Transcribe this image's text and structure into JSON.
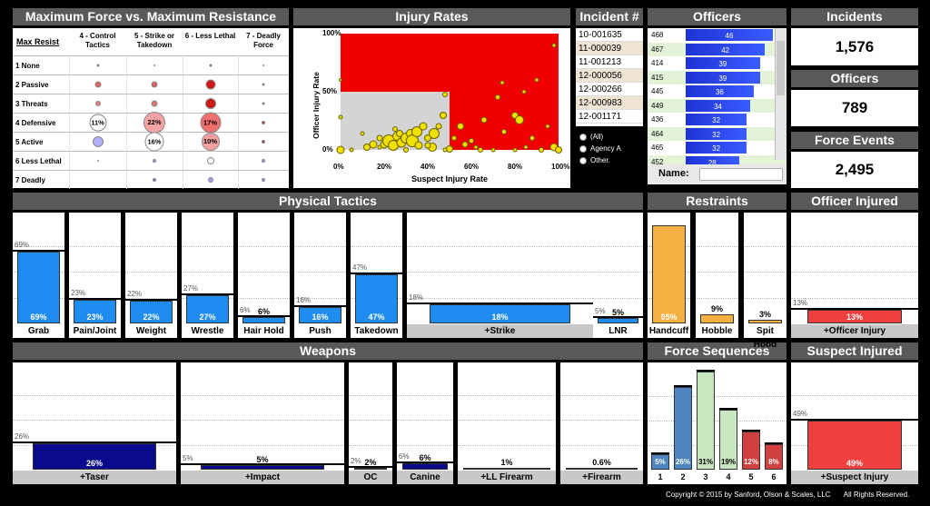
{
  "headers": {
    "matrix": "Maximum Force vs. Maximum Resistance",
    "injury": "Injury Rates",
    "incident": "Incident #",
    "officers": "Officers",
    "incidents": "Incidents",
    "officers_kpi": "Officers",
    "force_events": "Force Events",
    "physical": "Physical Tactics",
    "restraints": "Restraints",
    "officer_injured": "Officer Injured",
    "weapons": "Weapons",
    "force_seq": "Force Sequences",
    "suspect_injured": "Suspect Injured"
  },
  "kpi": {
    "incidents": "1,576",
    "officers": "789",
    "force_events": "2,495"
  },
  "matrix": {
    "corner": "Max Resist",
    "columns": [
      "4 - Control Tactics",
      "5 - Strike or Takedown",
      "6 - Less Lethal",
      "7 - Deadly Force"
    ],
    "rows": [
      "1 None",
      "2 Passive",
      "3 Threats",
      "4 Defensive",
      "5 Active",
      "6 Less Lethal",
      "7 Deadly"
    ],
    "labels": {
      "r3c0": "11%",
      "r3c1": "22%",
      "r3c2": "17%",
      "r4c1": "16%",
      "r4c2": "10%"
    }
  },
  "scatter": {
    "ylabel": "Officer Injury Rate",
    "xlabel": "Suspect Injury Rate",
    "xticks": [
      "0%",
      "20%",
      "40%",
      "60%",
      "80%",
      "100%"
    ],
    "yticks": [
      "100%",
      "50%",
      "0%"
    ]
  },
  "incidents_list": [
    "10-001635",
    "11-000039",
    "11-001213",
    "12-000056",
    "12-000266",
    "12-000983",
    "12-001171"
  ],
  "radio": [
    "(All)",
    "Agency A",
    "Other."
  ],
  "name_label": "Name:",
  "officers_list": [
    {
      "id": "468",
      "v": "46",
      "f": 1.0
    },
    {
      "id": "467",
      "v": "42",
      "f": 0.91
    },
    {
      "id": "414",
      "v": "39",
      "f": 0.85
    },
    {
      "id": "415",
      "v": "39",
      "f": 0.85
    },
    {
      "id": "445",
      "v": "36",
      "f": 0.78
    },
    {
      "id": "449",
      "v": "34",
      "f": 0.74
    },
    {
      "id": "436",
      "v": "32",
      "f": 0.7
    },
    {
      "id": "464",
      "v": "32",
      "f": 0.7
    },
    {
      "id": "465",
      "v": "32",
      "f": 0.7
    },
    {
      "id": "452",
      "v": "28",
      "f": 0.61
    }
  ],
  "physical": [
    {
      "label": "Grab",
      "ref": "69%",
      "val": "69%",
      "pct": 69
    },
    {
      "label": "Pain/Joint",
      "ref": "23%",
      "val": "23%",
      "pct": 23
    },
    {
      "label": "Weight",
      "ref": "22%",
      "val": "22%",
      "pct": 22
    },
    {
      "label": "Wrestle",
      "ref": "27%",
      "val": "27%",
      "pct": 27
    },
    {
      "label": "Hair Hold",
      "ref": "6%",
      "val": "6%",
      "pct": 6
    },
    {
      "label": "Push",
      "ref": "16%",
      "val": "16%",
      "pct": 16
    },
    {
      "label": "Takedown",
      "ref": "47%",
      "val": "47%",
      "pct": 47
    },
    {
      "label": "+Strike",
      "ref": "18%",
      "val": "18%",
      "pct": 18
    },
    {
      "label": "LNR",
      "ref": "5%",
      "val": "5%",
      "pct": 5
    }
  ],
  "restraints": [
    {
      "label": "Handcuff",
      "val": "95%",
      "pct": 95
    },
    {
      "label": "Hobble",
      "val": "9%",
      "pct": 9
    },
    {
      "label": "Spit Hood",
      "val": "3%",
      "pct": 3
    }
  ],
  "officer_injured": {
    "label": "+Officer Injury",
    "ref": "13%",
    "val": "13%",
    "pct": 13
  },
  "weapons": [
    {
      "label": "+Taser",
      "ref": "26%",
      "val": "26%",
      "pct": 26
    },
    {
      "label": "+Impact",
      "ref": "5%",
      "val": "5%",
      "pct": 5
    },
    {
      "label": "OC",
      "ref": "2%",
      "val": "2%",
      "pct": 2
    },
    {
      "label": "Canine",
      "ref": "6%",
      "val": "6%",
      "pct": 6
    },
    {
      "label": "+LL Firearm",
      "ref": "",
      "val": "1%",
      "pct": 1
    },
    {
      "label": "+Firearm",
      "ref": "",
      "val": "0.6%",
      "pct": 0.6
    }
  ],
  "force_seq": [
    {
      "label": "1",
      "val": "5%",
      "pct": 5
    },
    {
      "label": "2",
      "val": "26%",
      "pct": 26
    },
    {
      "label": "3",
      "val": "31%",
      "pct": 31
    },
    {
      "label": "4",
      "val": "19%",
      "pct": 19
    },
    {
      "label": "5",
      "val": "12%",
      "pct": 12
    },
    {
      "label": "6",
      "val": "8%",
      "pct": 8
    }
  ],
  "suspect_injured": {
    "label": "+Suspect Injury",
    "ref": "49%",
    "val": "49%",
    "pct": 49
  },
  "footer": {
    "copyright": "Copyright © 2015 by Sanford, Olson & Scales, LLC",
    "rights": "All Rights Reserved."
  },
  "colors": {
    "blue": "#1e8cf0",
    "orange": "#f5b042",
    "red": "#f04040",
    "navy": "#0a0a8c"
  }
}
